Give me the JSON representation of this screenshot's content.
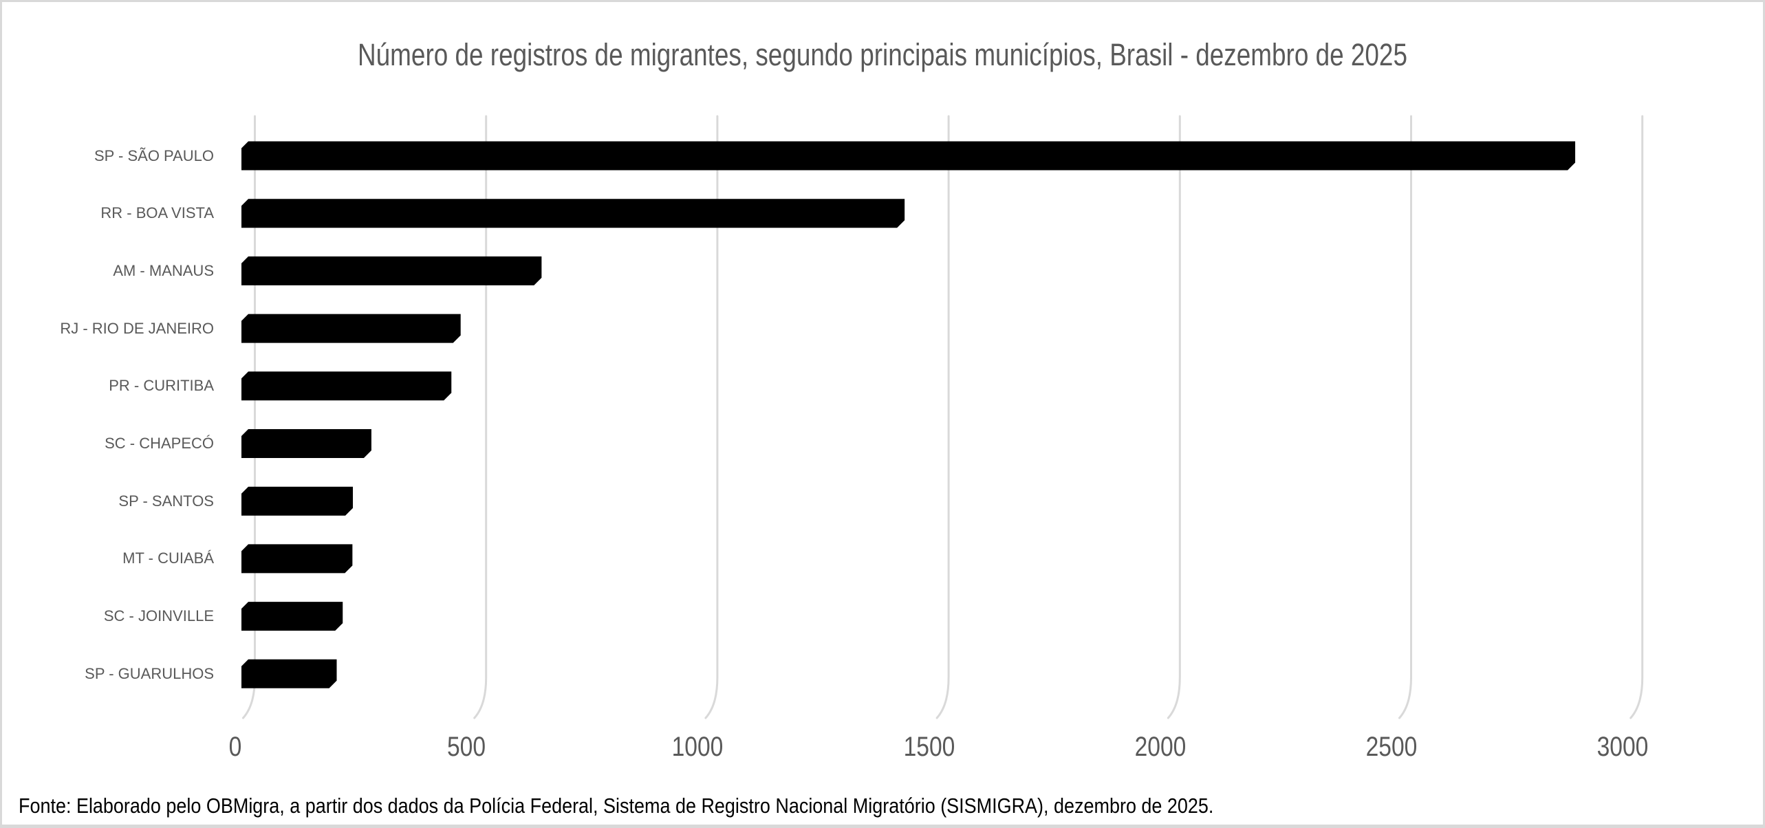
{
  "chart_data": {
    "type": "bar",
    "orientation": "horizontal",
    "title": "Número de registros de migrantes, segundo principais municípios, Brasil - dezembro de 2025",
    "categories": [
      "SP - SÃO PAULO",
      "RR - BOA VISTA",
      "AM - MANAUS",
      "RJ - RIO DE JANEIRO",
      "PR - CURITIBA",
      "SC - CHAPECÓ",
      "SP - SANTOS",
      "MT - CUIABÁ",
      "SC - JOINVILLE",
      "SP - GUARULHOS"
    ],
    "values": [
      2855,
      1405,
      620,
      445,
      425,
      252,
      212,
      211,
      190,
      177
    ],
    "x_ticks": [
      0,
      500,
      1000,
      1500,
      2000,
      2500,
      3000
    ],
    "xlim": [
      0,
      3270
    ],
    "xlabel": "",
    "ylabel": "",
    "grid": true,
    "legend": false,
    "bar_color": "#000000",
    "gridline_color": "#d9d9d9",
    "title_color": "#595959",
    "tick_color": "#595959",
    "category_label_color": "#595959",
    "source_note": "Fonte: Elaborado pelo OBMigra, a partir dos dados da Polícia Federal, Sistema de Registro Nacional Migratório (SISMIGRA), dezembro de 2025."
  }
}
